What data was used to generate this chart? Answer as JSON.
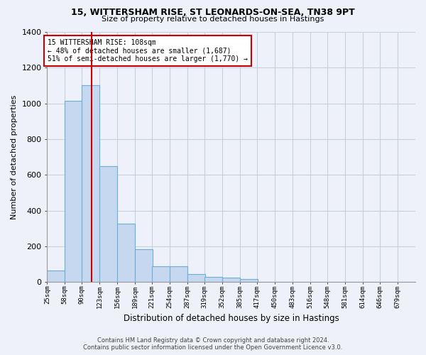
{
  "title1": "15, WITTERSHAM RISE, ST LEONARDS-ON-SEA, TN38 9PT",
  "title2": "Size of property relative to detached houses in Hastings",
  "xlabel": "Distribution of detached houses by size in Hastings",
  "ylabel": "Number of detached properties",
  "footer1": "Contains HM Land Registry data © Crown copyright and database right 2024.",
  "footer2": "Contains public sector information licensed under the Open Government Licence v3.0.",
  "annotation_line1": "15 WITTERSHAM RISE: 108sqm",
  "annotation_line2": "← 48% of detached houses are smaller (1,687)",
  "annotation_line3": "51% of semi-detached houses are larger (1,770) →",
  "property_size": 108,
  "bar_color": "#c5d8ef",
  "bar_edge_color": "#6baed6",
  "redline_color": "#cc0000",
  "background_color": "#eef1f9",
  "grid_color": "#c8d0e0",
  "categories": [
    "25sqm",
    "58sqm",
    "90sqm",
    "123sqm",
    "156sqm",
    "189sqm",
    "221sqm",
    "254sqm",
    "287sqm",
    "319sqm",
    "352sqm",
    "385sqm",
    "417sqm",
    "450sqm",
    "483sqm",
    "516sqm",
    "548sqm",
    "581sqm",
    "614sqm",
    "646sqm",
    "679sqm"
  ],
  "bin_edges": [
    25,
    58,
    90,
    123,
    156,
    189,
    221,
    254,
    287,
    319,
    352,
    385,
    417,
    450,
    483,
    516,
    548,
    581,
    614,
    646,
    679
  ],
  "bin_width": 33,
  "values": [
    65,
    1015,
    1100,
    650,
    325,
    185,
    90,
    90,
    45,
    28,
    25,
    15,
    0,
    0,
    0,
    0,
    0,
    0,
    0,
    0,
    0
  ],
  "ylim": [
    0,
    1400
  ],
  "yticks": [
    0,
    200,
    400,
    600,
    800,
    1000,
    1200,
    1400
  ]
}
